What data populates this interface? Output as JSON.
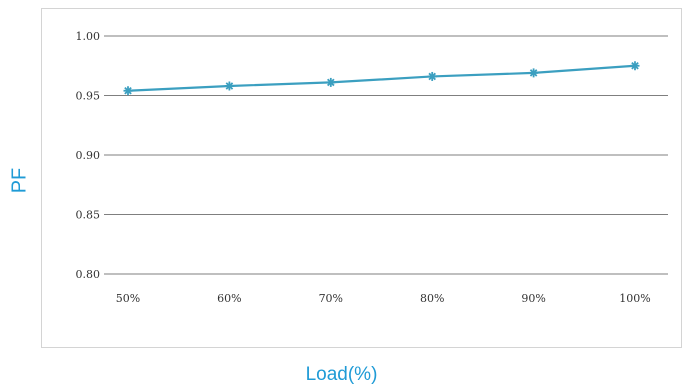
{
  "chart_data": {
    "type": "line",
    "title": "",
    "xlabel": "Load(%)",
    "ylabel": "PF",
    "categories": [
      "50%",
      "60%",
      "70%",
      "80%",
      "90%",
      "100%"
    ],
    "series": [
      {
        "values": [
          0.954,
          0.958,
          0.961,
          0.966,
          0.969,
          0.975
        ]
      }
    ],
    "yticks": [
      "0.80",
      "0.85",
      "0.90",
      "0.95",
      "1.00"
    ],
    "ylim": [
      0.8,
      1.0
    ],
    "grid": true,
    "legend": "none",
    "line_color": "#3b9fc0",
    "marker": "asterisk"
  }
}
